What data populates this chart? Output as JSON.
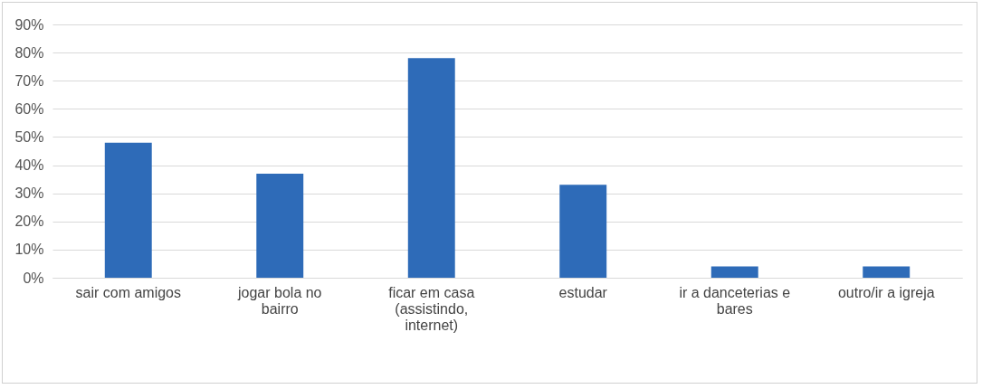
{
  "chart_data": {
    "type": "bar",
    "categories": [
      "sair com amigos",
      "jogar bola no bairro",
      "ficar em casa (assistindo, internet)",
      "estudar",
      "ir a danceterias e bares",
      "outro/ir a igreja"
    ],
    "values": [
      48,
      37,
      78,
      33,
      4,
      4
    ],
    "color": "#2e6bb8",
    "ylim": [
      0,
      90
    ],
    "yticks": [
      {
        "value": 0,
        "label": "0%"
      },
      {
        "value": 10,
        "label": "10%"
      },
      {
        "value": 20,
        "label": "20%"
      },
      {
        "value": 30,
        "label": "30%"
      },
      {
        "value": 40,
        "label": "40%"
      },
      {
        "value": 50,
        "label": "50%"
      },
      {
        "value": 60,
        "label": "60%"
      },
      {
        "value": 70,
        "label": "70%"
      },
      {
        "value": 80,
        "label": "80%"
      },
      {
        "value": 90,
        "label": "90%"
      }
    ],
    "grid": "y"
  }
}
